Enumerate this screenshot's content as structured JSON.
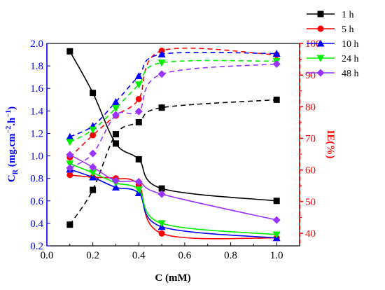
{
  "chart_data": {
    "type": "line",
    "xlabel": "C (mM)",
    "ylabel_left": {
      "main": "C",
      "sub": "R",
      "rest": " (mg.cm",
      "sup1": "−2",
      "mid": ".h",
      "sup2": "−1",
      "end": ")"
    },
    "ylabel_right": "IE(%)",
    "xlim": [
      0.0,
      1.1
    ],
    "ylim_left": [
      0.2,
      2.0
    ],
    "ylim_right": [
      36,
      100
    ],
    "x_ticks": [
      "0.0",
      "0.2",
      "0.4",
      "0.6",
      "0.8",
      "1.0"
    ],
    "y_left_ticks": [
      "0.2",
      "0.4",
      "0.6",
      "0.8",
      "1.0",
      "1.2",
      "1.4",
      "1.6",
      "1.8",
      "2.0"
    ],
    "y_right_ticks": [
      "40",
      "50",
      "60",
      "70",
      "80",
      "90",
      "100"
    ],
    "x": [
      0.1,
      0.2,
      0.3,
      0.4,
      0.5,
      1.0
    ],
    "legend_position": "top-right",
    "series": [
      {
        "name": "1 h",
        "color": "#000000",
        "marker": "square",
        "cr": [
          1.93,
          1.56,
          1.11,
          0.97,
          0.71,
          0.6
        ],
        "ie": [
          42.7,
          53.7,
          71.3,
          75.1,
          79.7,
          82.2
        ]
      },
      {
        "name": "5 h",
        "color": "#ff0000",
        "marker": "circle",
        "cr": [
          0.83,
          0.81,
          0.8,
          0.74,
          0.31,
          0.27
        ],
        "ie": [
          64.0,
          71.0,
          77.2,
          82.4,
          97.7,
          96.4
        ]
      },
      {
        "name": "10 h",
        "color": "#0000ff",
        "marker": "triangle-up",
        "cr": [
          0.88,
          0.81,
          0.72,
          0.67,
          0.37,
          0.27
        ],
        "ie": [
          70.5,
          73.9,
          81.5,
          89.7,
          96.6,
          96.8
        ]
      },
      {
        "name": "24 h",
        "color": "#00ee00",
        "marker": "triangle-down",
        "cr": [
          0.93,
          0.85,
          0.76,
          0.7,
          0.4,
          0.3
        ],
        "ie": [
          68.8,
          72.7,
          79.5,
          87.0,
          93.9,
          94.4
        ]
      },
      {
        "name": "48 h",
        "color": "#9933ff",
        "marker": "diamond",
        "cr": [
          1.01,
          0.9,
          0.78,
          0.77,
          0.66,
          0.43
        ],
        "ie": [
          60.6,
          65.2,
          77.4,
          78.5,
          90.3,
          93.5
        ]
      }
    ]
  }
}
